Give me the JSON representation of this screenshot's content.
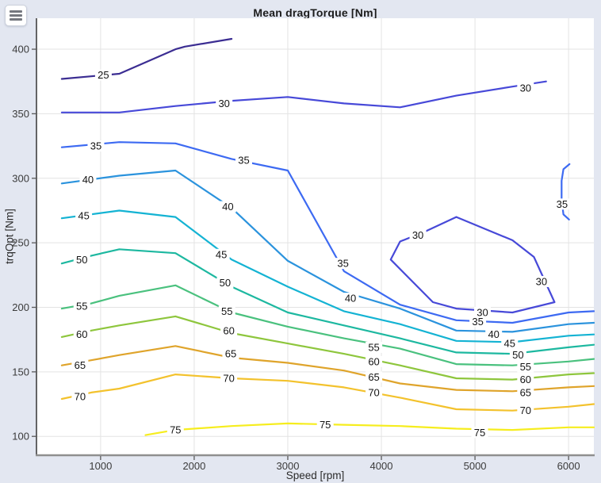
{
  "icons": {
    "menu": "hamburger-icon"
  },
  "colors": {
    "figure_background": "#e3e7f1",
    "plot_background": "#ffffff",
    "grid_color": "#e3e3e3",
    "axis_left_color": "#4b4b4b",
    "axis_bottom_color": "#8f8f8f",
    "tick_label_color": "#3b3b3b",
    "contour_label_color": "#141414"
  },
  "chart_data": {
    "type": "contour",
    "title": "Mean dragTorque [Nm]",
    "xlabel": "Speed [rpm]",
    "ylabel": "trqOpt [Nm]",
    "x_ticks": [
      1000,
      2000,
      3000,
      4000,
      5000,
      6000
    ],
    "y_ticks": [
      100,
      150,
      200,
      250,
      300,
      350,
      400
    ],
    "xlim": [
      315,
      6270
    ],
    "ylim": [
      86,
      424
    ],
    "grid": true,
    "levels": [
      {
        "value": 25,
        "color": "#3b2d92",
        "lines": [
          {
            "points": [
              [
                585,
                377
              ],
              [
                900,
                379
              ],
              [
                1200,
                381
              ],
              [
                1800,
                400
              ],
              [
                1900,
                402
              ],
              [
                2400,
                408
              ]
            ],
            "labels": [
              [
                1030,
                380
              ]
            ]
          }
        ]
      },
      {
        "value": 30,
        "color": "#4749d8",
        "lines": [
          {
            "points": [
              [
                585,
                351
              ],
              [
                1200,
                351
              ],
              [
                1800,
                356
              ],
              [
                2400,
                360
              ],
              [
                3000,
                363
              ],
              [
                3600,
                358
              ],
              [
                4200,
                355
              ],
              [
                4800,
                364
              ],
              [
                5400,
                371
              ],
              [
                5760,
                375
              ]
            ],
            "labels": [
              [
                2320,
                358
              ],
              [
                5540,
                370
              ]
            ]
          },
          {
            "points": [
              [
                4800,
                270
              ],
              [
                4475,
                259
              ],
              [
                4200,
                251
              ],
              [
                4100,
                237
              ],
              [
                4550,
                204
              ],
              [
                4800,
                199
              ],
              [
                5400,
                196
              ],
              [
                5850,
                204
              ],
              [
                5630,
                239
              ],
              [
                5400,
                252
              ],
              [
                4800,
                270
              ]
            ],
            "labels": [
              [
                4390,
                256
              ],
              [
                5080,
                196
              ],
              [
                5710,
                220
              ]
            ]
          }
        ]
      },
      {
        "value": 35,
        "color": "#3d6af2",
        "lines": [
          {
            "points": [
              [
                585,
                324
              ],
              [
                1200,
                328
              ],
              [
                1800,
                327
              ],
              [
                2400,
                315
              ],
              [
                3000,
                306
              ],
              [
                3600,
                228
              ],
              [
                4200,
                202
              ],
              [
                4800,
                190
              ],
              [
                5400,
                188
              ],
              [
                6000,
                196
              ],
              [
                6270,
                197
              ]
            ],
            "labels": [
              [
                950,
                325
              ],
              [
                2530,
                314
              ],
              [
                3590,
                234
              ],
              [
                5030,
                189
              ]
            ]
          },
          {
            "points": [
              [
                6010,
                311
              ],
              [
                5945,
                307
              ],
              [
                5925,
                298
              ],
              [
                5925,
                284
              ],
              [
                5945,
                272
              ],
              [
                6005,
                268
              ]
            ],
            "labels": [
              [
                5930,
                280
              ]
            ]
          }
        ]
      },
      {
        "value": 40,
        "color": "#2b93dd",
        "lines": [
          {
            "points": [
              [
                585,
                296
              ],
              [
                1200,
                302
              ],
              [
                1800,
                306
              ],
              [
                2400,
                277
              ],
              [
                3000,
                236
              ],
              [
                3600,
                212
              ],
              [
                4200,
                199
              ],
              [
                4800,
                182
              ],
              [
                5400,
                181
              ],
              [
                6000,
                187
              ],
              [
                6270,
                188
              ]
            ],
            "labels": [
              [
                865,
                299
              ],
              [
                2360,
                278
              ],
              [
                3670,
                207
              ],
              [
                5200,
                179
              ]
            ]
          }
        ]
      },
      {
        "value": 45,
        "color": "#14b3d3",
        "lines": [
          {
            "points": [
              [
                585,
                269
              ],
              [
                1200,
                275
              ],
              [
                1800,
                270
              ],
              [
                2400,
                237
              ],
              [
                3000,
                216
              ],
              [
                3600,
                197
              ],
              [
                4200,
                187
              ],
              [
                4800,
                174
              ],
              [
                5400,
                173
              ],
              [
                6000,
                178
              ],
              [
                6270,
                179
              ]
            ],
            "labels": [
              [
                820,
                271
              ],
              [
                2290,
                241
              ],
              [
                5370,
                172
              ]
            ]
          }
        ]
      },
      {
        "value": 50,
        "color": "#1db8a0",
        "lines": [
          {
            "points": [
              [
                585,
                234
              ],
              [
                900,
                240
              ],
              [
                1200,
                245
              ],
              [
                1800,
                242
              ],
              [
                2400,
                216
              ],
              [
                3000,
                196
              ],
              [
                3600,
                186
              ],
              [
                4200,
                176
              ],
              [
                4800,
                165
              ],
              [
                5400,
                164
              ],
              [
                6000,
                169
              ],
              [
                6270,
                171
              ]
            ],
            "labels": [
              [
                800,
                237
              ],
              [
                2330,
                219
              ],
              [
                5460,
                163
              ]
            ]
          }
        ]
      },
      {
        "value": 55,
        "color": "#4ac17e",
        "lines": [
          {
            "points": [
              [
                585,
                199
              ],
              [
                900,
                203
              ],
              [
                1200,
                209
              ],
              [
                1800,
                217
              ],
              [
                2400,
                196
              ],
              [
                3000,
                185
              ],
              [
                3600,
                176
              ],
              [
                4200,
                168
              ],
              [
                4800,
                156
              ],
              [
                5400,
                155
              ],
              [
                6000,
                158
              ],
              [
                6270,
                160
              ]
            ],
            "labels": [
              [
                800,
                201
              ],
              [
                2350,
                197
              ],
              [
                3920,
                169
              ],
              [
                5540,
                154
              ]
            ]
          }
        ]
      },
      {
        "value": 60,
        "color": "#8ec63d",
        "lines": [
          {
            "points": [
              [
                585,
                177
              ],
              [
                900,
                182
              ],
              [
                1200,
                186
              ],
              [
                1800,
                193
              ],
              [
                2400,
                180
              ],
              [
                3000,
                172
              ],
              [
                3600,
                164
              ],
              [
                4200,
                155
              ],
              [
                4800,
                145
              ],
              [
                5400,
                144
              ],
              [
                6000,
                148
              ],
              [
                6270,
                149
              ]
            ],
            "labels": [
              [
                800,
                179
              ],
              [
                2370,
                182
              ],
              [
                3920,
                158
              ],
              [
                5540,
                144
              ]
            ]
          }
        ]
      },
      {
        "value": 65,
        "color": "#dfa42b",
        "lines": [
          {
            "points": [
              [
                585,
                155
              ],
              [
                900,
                159
              ],
              [
                1200,
                163
              ],
              [
                1800,
                170
              ],
              [
                2400,
                161
              ],
              [
                3000,
                157
              ],
              [
                3600,
                151
              ],
              [
                4200,
                141
              ],
              [
                4800,
                136
              ],
              [
                5400,
                135
              ],
              [
                6000,
                138
              ],
              [
                6270,
                139
              ]
            ],
            "labels": [
              [
                780,
                155
              ],
              [
                2390,
                164
              ],
              [
                3920,
                146
              ],
              [
                5540,
                134
              ]
            ]
          }
        ]
      },
      {
        "value": 70,
        "color": "#f3c22d",
        "lines": [
          {
            "points": [
              [
                585,
                129
              ],
              [
                900,
                134
              ],
              [
                1200,
                137
              ],
              [
                1800,
                148
              ],
              [
                2400,
                145
              ],
              [
                3000,
                143
              ],
              [
                3600,
                138
              ],
              [
                4200,
                130
              ],
              [
                4800,
                121
              ],
              [
                5400,
                120
              ],
              [
                6000,
                123
              ],
              [
                6270,
                125
              ]
            ],
            "labels": [
              [
                780,
                131
              ],
              [
                2370,
                145
              ],
              [
                3920,
                134
              ],
              [
                5540,
                120
              ]
            ]
          }
        ]
      },
      {
        "value": 75,
        "color": "#f6ed1e",
        "lines": [
          {
            "points": [
              [
                1480,
                101
              ],
              [
                1800,
                105
              ],
              [
                2400,
                108
              ],
              [
                3000,
                110
              ],
              [
                3600,
                109
              ],
              [
                4200,
                108
              ],
              [
                4800,
                106
              ],
              [
                5400,
                105
              ],
              [
                6000,
                107
              ],
              [
                6270,
                107
              ]
            ],
            "labels": [
              [
                1800,
                105
              ],
              [
                3400,
                109
              ],
              [
                5050,
                103
              ]
            ]
          }
        ]
      }
    ]
  }
}
